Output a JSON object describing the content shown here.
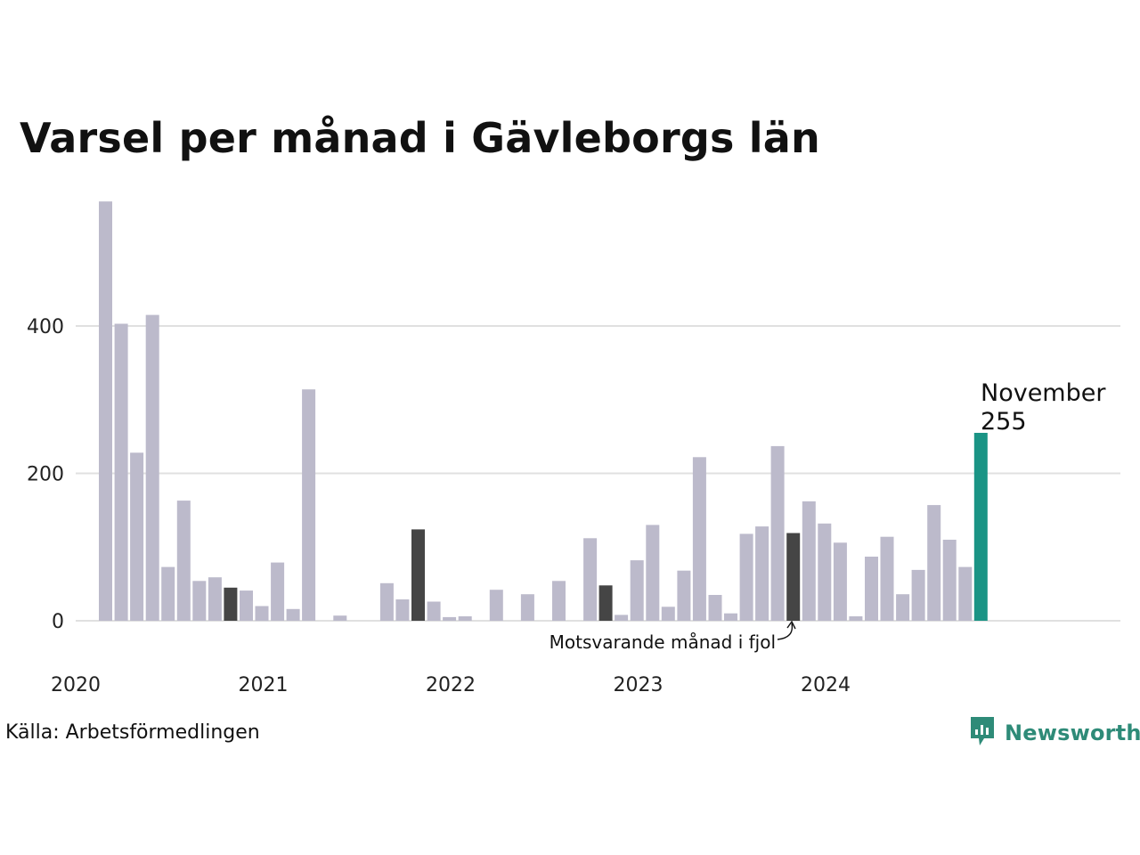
{
  "title": "Varsel per månad i Gävleborgs län",
  "source": "Källa: Arbetsförmedlingen",
  "brand": {
    "name": "Newsworthy",
    "icon": "newsworthy-logo-icon",
    "color": "#2e8b78"
  },
  "colors": {
    "default": "#bcbacb",
    "same_month_last_year": "#454545",
    "latest": "#1a9485",
    "grid": "#e0e0e0"
  },
  "chart_data": {
    "type": "bar",
    "title": "Varsel per månad i Gävleborgs län",
    "xlabel": "",
    "ylabel": "",
    "ylim": [
      0,
      560
    ],
    "yticks": [
      0,
      200,
      400
    ],
    "year_labels": [
      "2020",
      "2021",
      "2022",
      "2023",
      "2024"
    ],
    "start_month": "2020-03",
    "categories": [
      "2020-03",
      "2020-04",
      "2020-05",
      "2020-06",
      "2020-07",
      "2020-08",
      "2020-09",
      "2020-10",
      "2020-11",
      "2020-12",
      "2021-01",
      "2021-02",
      "2021-03",
      "2021-04",
      "2021-05",
      "2021-06",
      "2021-07",
      "2021-08",
      "2021-09",
      "2021-10",
      "2021-11",
      "2021-12",
      "2022-01",
      "2022-02",
      "2022-03",
      "2022-04",
      "2022-05",
      "2022-06",
      "2022-07",
      "2022-08",
      "2022-09",
      "2022-10",
      "2022-11",
      "2022-12",
      "2023-01",
      "2023-02",
      "2023-03",
      "2023-04",
      "2023-05",
      "2023-06",
      "2023-07",
      "2023-08",
      "2023-09",
      "2023-10",
      "2023-11",
      "2023-12",
      "2024-01",
      "2024-02",
      "2024-03",
      "2024-04",
      "2024-05",
      "2024-06",
      "2024-07",
      "2024-08",
      "2024-09",
      "2024-10",
      "2024-11"
    ],
    "values": [
      569,
      403,
      228,
      415,
      73,
      163,
      54,
      59,
      45,
      41,
      20,
      79,
      16,
      314,
      0,
      7,
      0,
      0,
      51,
      29,
      124,
      26,
      5,
      6,
      0,
      42,
      0,
      36,
      0,
      54,
      0,
      112,
      48,
      8,
      82,
      130,
      19,
      68,
      222,
      35,
      10,
      118,
      128,
      237,
      119,
      162,
      132,
      106,
      6,
      87,
      114,
      36,
      69,
      157,
      110,
      73,
      255
    ],
    "highlight_same_month_last_year": [
      "2020-11",
      "2021-11",
      "2022-11",
      "2023-11"
    ],
    "annotation": "Motsvarande månad i fjol",
    "latest": {
      "label": "November",
      "value": "255"
    },
    "grid": true,
    "legend": "none"
  }
}
